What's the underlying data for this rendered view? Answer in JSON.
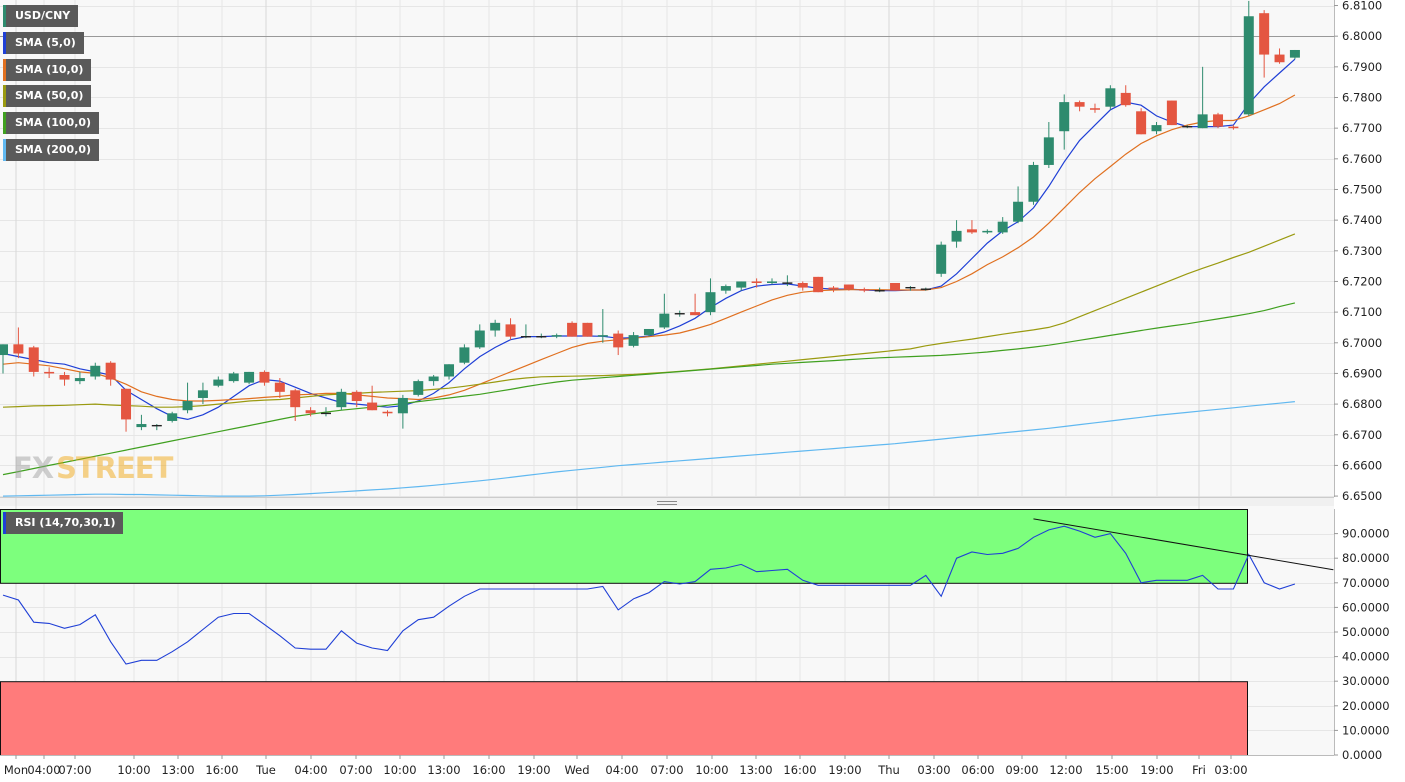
{
  "chart_data": {
    "type": "candlestick",
    "symbol": "USD/CNY",
    "x_tick_labels": [
      "Mon",
      "04:00",
      "07:00",
      "10:00",
      "13:00",
      "16:00",
      "Tue",
      "04:00",
      "07:00",
      "10:00",
      "13:00",
      "16:00",
      "19:00",
      "Wed",
      "04:00",
      "07:00",
      "10:00",
      "13:00",
      "16:00",
      "19:00",
      "Thu",
      "03:00",
      "06:00",
      "09:00",
      "12:00",
      "15:00",
      "19:00",
      "Fri",
      "03:00"
    ],
    "price_axis": {
      "ticks": [
        "6.8100",
        "6.8000",
        "6.7900",
        "6.7800",
        "6.7700",
        "6.7600",
        "6.7500",
        "6.7400",
        "6.7300",
        "6.7200",
        "6.7100",
        "6.7000",
        "6.6900",
        "6.6800",
        "6.6700",
        "6.6600",
        "6.6500"
      ],
      "ylim": [
        6.6497,
        6.8118
      ],
      "horizontal_line": 6.8
    },
    "indicators": [
      {
        "name": "SMA (5,0)",
        "color": "#1f3fd6"
      },
      {
        "name": "SMA (10,0)",
        "color": "#e07020"
      },
      {
        "name": "SMA (50,0)",
        "color": "#9a9a10"
      },
      {
        "name": "SMA (100,0)",
        "color": "#40a020"
      },
      {
        "name": "SMA (200,0)",
        "color": "#60b8f0"
      }
    ],
    "candles": [
      {
        "o": 6.696,
        "h": 6.6995,
        "l": 6.69,
        "c": 6.6995
      },
      {
        "o": 6.6995,
        "h": 6.705,
        "l": 6.695,
        "c": 6.6965
      },
      {
        "o": 6.6985,
        "h": 6.699,
        "l": 6.689,
        "c": 6.6905
      },
      {
        "o": 6.6905,
        "h": 6.692,
        "l": 6.6885,
        "c": 6.69
      },
      {
        "o": 6.6895,
        "h": 6.6905,
        "l": 6.686,
        "c": 6.688
      },
      {
        "o": 6.6875,
        "h": 6.6905,
        "l": 6.6865,
        "c": 6.6885
      },
      {
        "o": 6.689,
        "h": 6.6935,
        "l": 6.688,
        "c": 6.6925
      },
      {
        "o": 6.6935,
        "h": 6.694,
        "l": 6.686,
        "c": 6.688
      },
      {
        "o": 6.685,
        "h": 6.685,
        "l": 6.671,
        "c": 6.675
      },
      {
        "o": 6.6725,
        "h": 6.6765,
        "l": 6.6715,
        "c": 6.6735
      },
      {
        "o": 6.673,
        "h": 6.6735,
        "l": 6.6715,
        "c": 6.673
      },
      {
        "o": 6.6745,
        "h": 6.6775,
        "l": 6.674,
        "c": 6.677
      },
      {
        "o": 6.678,
        "h": 6.687,
        "l": 6.677,
        "c": 6.681
      },
      {
        "o": 6.682,
        "h": 6.687,
        "l": 6.68,
        "c": 6.6845
      },
      {
        "o": 6.686,
        "h": 6.689,
        "l": 6.6855,
        "c": 6.688
      },
      {
        "o": 6.6875,
        "h": 6.6905,
        "l": 6.687,
        "c": 6.69
      },
      {
        "o": 6.687,
        "h": 6.6905,
        "l": 6.6865,
        "c": 6.6905
      },
      {
        "o": 6.6905,
        "h": 6.691,
        "l": 6.686,
        "c": 6.687
      },
      {
        "o": 6.687,
        "h": 6.6885,
        "l": 6.682,
        "c": 6.684
      },
      {
        "o": 6.6845,
        "h": 6.685,
        "l": 6.6745,
        "c": 6.679
      },
      {
        "o": 6.678,
        "h": 6.679,
        "l": 6.676,
        "c": 6.677
      },
      {
        "o": 6.677,
        "h": 6.679,
        "l": 6.676,
        "c": 6.677
      },
      {
        "o": 6.679,
        "h": 6.685,
        "l": 6.678,
        "c": 6.684
      },
      {
        "o": 6.684,
        "h": 6.6845,
        "l": 6.679,
        "c": 6.681
      },
      {
        "o": 6.6805,
        "h": 6.686,
        "l": 6.678,
        "c": 6.678
      },
      {
        "o": 6.6775,
        "h": 6.678,
        "l": 6.676,
        "c": 6.677
      },
      {
        "o": 6.677,
        "h": 6.683,
        "l": 6.672,
        "c": 6.682
      },
      {
        "o": 6.683,
        "h": 6.688,
        "l": 6.6825,
        "c": 6.6875
      },
      {
        "o": 6.6875,
        "h": 6.6895,
        "l": 6.686,
        "c": 6.689
      },
      {
        "o": 6.689,
        "h": 6.693,
        "l": 6.688,
        "c": 6.693
      },
      {
        "o": 6.6935,
        "h": 6.6995,
        "l": 6.693,
        "c": 6.6985
      },
      {
        "o": 6.6985,
        "h": 6.706,
        "l": 6.698,
        "c": 6.704
      },
      {
        "o": 6.704,
        "h": 6.7075,
        "l": 6.702,
        "c": 6.7065
      },
      {
        "o": 6.706,
        "h": 6.708,
        "l": 6.701,
        "c": 6.702
      },
      {
        "o": 6.702,
        "h": 6.706,
        "l": 6.7015,
        "c": 6.702
      },
      {
        "o": 6.702,
        "h": 6.703,
        "l": 6.7015,
        "c": 6.702
      },
      {
        "o": 6.702,
        "h": 6.703,
        "l": 6.7015,
        "c": 6.7025
      },
      {
        "o": 6.7065,
        "h": 6.707,
        "l": 6.702,
        "c": 6.702
      },
      {
        "o": 6.7065,
        "h": 6.7065,
        "l": 6.702,
        "c": 6.702
      },
      {
        "o": 6.702,
        "h": 6.711,
        "l": 6.7,
        "c": 6.7025
      },
      {
        "o": 6.703,
        "h": 6.704,
        "l": 6.696,
        "c": 6.6985
      },
      {
        "o": 6.699,
        "h": 6.7035,
        "l": 6.6985,
        "c": 6.7025
      },
      {
        "o": 6.7025,
        "h": 6.7045,
        "l": 6.702,
        "c": 6.7045
      },
      {
        "o": 6.705,
        "h": 6.716,
        "l": 6.7045,
        "c": 6.7095
      },
      {
        "o": 6.7095,
        "h": 6.7105,
        "l": 6.7085,
        "c": 6.7095
      },
      {
        "o": 6.71,
        "h": 6.716,
        "l": 6.709,
        "c": 6.709
      },
      {
        "o": 6.71,
        "h": 6.721,
        "l": 6.709,
        "c": 6.7165
      },
      {
        "o": 6.717,
        "h": 6.719,
        "l": 6.716,
        "c": 6.7185
      },
      {
        "o": 6.718,
        "h": 6.72,
        "l": 6.717,
        "c": 6.72
      },
      {
        "o": 6.72,
        "h": 6.721,
        "l": 6.718,
        "c": 6.7195
      },
      {
        "o": 6.7195,
        "h": 6.721,
        "l": 6.719,
        "c": 6.72
      },
      {
        "o": 6.7195,
        "h": 6.722,
        "l": 6.7185,
        "c": 6.7195
      },
      {
        "o": 6.7195,
        "h": 6.72,
        "l": 6.717,
        "c": 6.718
      },
      {
        "o": 6.7215,
        "h": 6.7215,
        "l": 6.7165,
        "c": 6.7165
      },
      {
        "o": 6.718,
        "h": 6.7185,
        "l": 6.7165,
        "c": 6.7175
      },
      {
        "o": 6.719,
        "h": 6.719,
        "l": 6.717,
        "c": 6.7175
      },
      {
        "o": 6.7175,
        "h": 6.718,
        "l": 6.7165,
        "c": 6.717
      },
      {
        "o": 6.717,
        "h": 6.718,
        "l": 6.7165,
        "c": 6.717
      },
      {
        "o": 6.7195,
        "h": 6.7195,
        "l": 6.717,
        "c": 6.717
      },
      {
        "o": 6.718,
        "h": 6.7185,
        "l": 6.717,
        "c": 6.718
      },
      {
        "o": 6.7175,
        "h": 6.718,
        "l": 6.717,
        "c": 6.7175
      },
      {
        "o": 6.7225,
        "h": 6.733,
        "l": 6.7215,
        "c": 6.732
      },
      {
        "o": 6.733,
        "h": 6.74,
        "l": 6.731,
        "c": 6.7365
      },
      {
        "o": 6.737,
        "h": 6.74,
        "l": 6.7355,
        "c": 6.736
      },
      {
        "o": 6.736,
        "h": 6.737,
        "l": 6.7355,
        "c": 6.7365
      },
      {
        "o": 6.736,
        "h": 6.741,
        "l": 6.7355,
        "c": 6.7395
      },
      {
        "o": 6.7395,
        "h": 6.751,
        "l": 6.739,
        "c": 6.746
      },
      {
        "o": 6.746,
        "h": 6.759,
        "l": 6.745,
        "c": 6.758
      },
      {
        "o": 6.758,
        "h": 6.772,
        "l": 6.757,
        "c": 6.767
      },
      {
        "o": 6.769,
        "h": 6.781,
        "l": 6.763,
        "c": 6.7785
      },
      {
        "o": 6.7785,
        "h": 6.779,
        "l": 6.7755,
        "c": 6.777
      },
      {
        "o": 6.7765,
        "h": 6.778,
        "l": 6.775,
        "c": 6.776
      },
      {
        "o": 6.777,
        "h": 6.784,
        "l": 6.776,
        "c": 6.783
      },
      {
        "o": 6.7815,
        "h": 6.784,
        "l": 6.777,
        "c": 6.7775
      },
      {
        "o": 6.7755,
        "h": 6.7765,
        "l": 6.768,
        "c": 6.768
      },
      {
        "o": 6.769,
        "h": 6.772,
        "l": 6.768,
        "c": 6.771
      },
      {
        "o": 6.779,
        "h": 6.779,
        "l": 6.771,
        "c": 6.771
      },
      {
        "o": 6.7705,
        "h": 6.771,
        "l": 6.77,
        "c": 6.7705
      },
      {
        "o": 6.77,
        "h": 6.79,
        "l": 6.77,
        "c": 6.7745
      },
      {
        "o": 6.7745,
        "h": 6.775,
        "l": 6.77,
        "c": 6.7705
      },
      {
        "o": 6.7705,
        "h": 6.771,
        "l": 6.7695,
        "c": 6.77
      },
      {
        "o": 6.7745,
        "h": 6.8115,
        "l": 6.774,
        "c": 6.8065
      },
      {
        "o": 6.8075,
        "h": 6.8085,
        "l": 6.7865,
        "c": 6.794
      },
      {
        "o": 6.794,
        "h": 6.796,
        "l": 6.791,
        "c": 6.7915
      },
      {
        "o": 6.793,
        "h": 6.7955,
        "l": 6.7925,
        "c": 6.7955
      }
    ],
    "sma": {
      "SMA (5,0)": [
        6.6965,
        6.6955,
        6.6945,
        6.6935,
        6.693,
        6.6915,
        6.6905,
        6.6895,
        6.6845,
        6.6815,
        6.6785,
        6.676,
        6.675,
        6.6765,
        6.679,
        6.6825,
        6.686,
        6.688,
        6.6875,
        6.6855,
        6.6835,
        6.682,
        6.6805,
        6.68,
        6.6795,
        6.679,
        6.6795,
        6.681,
        6.6835,
        6.687,
        6.6915,
        6.6955,
        6.6985,
        6.701,
        6.702,
        6.702,
        6.7022,
        6.7022,
        6.7022,
        6.7021,
        6.7015,
        6.7017,
        6.7022,
        6.7035,
        6.7055,
        6.708,
        6.7115,
        6.7145,
        6.717,
        6.7185,
        6.719,
        6.7192,
        6.7185,
        6.7178,
        6.7175,
        6.7175,
        6.7172,
        6.717,
        6.717,
        6.7172,
        6.7172,
        6.7185,
        6.7225,
        6.7275,
        6.7325,
        6.7365,
        6.7395,
        6.744,
        6.751,
        6.759,
        6.766,
        6.771,
        6.776,
        6.7785,
        6.7775,
        6.774,
        6.772,
        6.7705,
        6.7705,
        6.7705,
        6.771,
        6.778,
        6.7835,
        6.788,
        6.7925
      ],
      "SMA (10,0)": [
        6.693,
        6.6935,
        6.693,
        6.6925,
        6.6915,
        6.6905,
        6.69,
        6.6885,
        6.6865,
        6.684,
        6.6825,
        6.6815,
        6.681,
        6.681,
        6.6812,
        6.6815,
        6.6818,
        6.6822,
        6.6825,
        6.683,
        6.6832,
        6.6835,
        6.6835,
        6.683,
        6.6825,
        6.682,
        6.6818,
        6.6815,
        6.682,
        6.683,
        6.6845,
        6.6865,
        6.6885,
        6.6905,
        6.6925,
        6.6945,
        6.6965,
        6.6985,
        6.6998,
        6.7005,
        6.701,
        6.7015,
        6.702,
        6.7025,
        6.7032,
        6.7045,
        6.706,
        6.708,
        6.71,
        6.712,
        6.714,
        6.7155,
        6.7165,
        6.717,
        6.7172,
        6.7173,
        6.7173,
        6.7173,
        6.7172,
        6.7172,
        6.7172,
        6.718,
        6.72,
        6.7225,
        6.7255,
        6.728,
        6.731,
        6.7345,
        6.739,
        6.744,
        6.749,
        6.7535,
        6.7575,
        6.7615,
        6.765,
        6.7675,
        6.7695,
        6.771,
        6.772,
        6.7725,
        6.7725,
        6.774,
        6.776,
        6.778,
        6.7808
      ],
      "SMA (50,0)": [
        6.679,
        6.6792,
        6.6794,
        6.6795,
        6.6796,
        6.6798,
        6.68,
        6.6797,
        6.6795,
        6.6793,
        6.679,
        6.679,
        6.6792,
        6.6795,
        6.68,
        6.6805,
        6.681,
        6.6813,
        6.6815,
        6.682,
        6.6825,
        6.683,
        6.6833,
        6.6835,
        6.6838,
        6.684,
        6.6842,
        6.6844,
        6.6848,
        6.6852,
        6.6858,
        6.6865,
        6.6872,
        6.688,
        6.6885,
        6.6889,
        6.689,
        6.6891,
        6.6892,
        6.6893,
        6.6895,
        6.6897,
        6.69,
        6.6903,
        6.6907,
        6.6911,
        6.6915,
        6.692,
        6.6925,
        6.693,
        6.6935,
        6.694,
        6.6945,
        6.695,
        6.6955,
        6.696,
        6.6965,
        6.697,
        6.6975,
        6.698,
        6.699,
        6.6998,
        6.7005,
        6.7012,
        6.702,
        6.7028,
        6.7035,
        6.7042,
        6.705,
        6.7065,
        6.7085,
        6.7105,
        6.7125,
        6.7145,
        6.7165,
        6.7185,
        6.7205,
        6.7225,
        6.7243,
        6.726,
        6.7278,
        6.7295,
        6.7315,
        6.7335,
        6.7355
      ],
      "SMA (100,0)": [
        6.657,
        6.658,
        6.659,
        6.66,
        6.661,
        6.662,
        6.663,
        6.664,
        6.665,
        6.666,
        6.667,
        6.668,
        6.669,
        6.67,
        6.671,
        6.672,
        6.673,
        6.674,
        6.675,
        6.676,
        6.6767,
        6.6774,
        6.678,
        6.6785,
        6.679,
        6.6796,
        6.6802,
        6.6808,
        6.6814,
        6.682,
        6.6826,
        6.6832,
        6.684,
        6.6848,
        6.6857,
        6.6865,
        6.6872,
        6.6878,
        6.6882,
        6.6886,
        6.689,
        6.6894,
        6.6898,
        6.6902,
        6.6906,
        6.691,
        6.6914,
        6.6918,
        6.6922,
        6.6926,
        6.693,
        6.6933,
        6.6936,
        6.6939,
        6.6942,
        6.6945,
        6.6948,
        6.6951,
        6.6953,
        6.6955,
        6.6957,
        6.6959,
        6.6962,
        6.6966,
        6.697,
        6.6975,
        6.698,
        6.6986,
        6.6992,
        6.7,
        6.7008,
        6.7016,
        6.7024,
        6.7032,
        6.704,
        6.7048,
        6.7055,
        6.7062,
        6.707,
        6.7078,
        6.7086,
        6.7095,
        6.7105,
        6.7118,
        6.713
      ],
      "SMA (200,0)": [
        6.65,
        6.6501,
        6.6502,
        6.6503,
        6.6504,
        6.6505,
        6.6506,
        6.6506,
        6.6505,
        6.6505,
        6.6504,
        6.6503,
        6.6502,
        6.6501,
        6.65,
        6.65,
        6.65,
        6.6501,
        6.6503,
        6.6505,
        6.6508,
        6.6511,
        6.6514,
        6.6517,
        6.652,
        6.6523,
        6.6527,
        6.6531,
        6.6535,
        6.654,
        6.6545,
        6.655,
        6.6555,
        6.6561,
        6.6567,
        6.6573,
        6.6579,
        6.6584,
        6.6589,
        6.6594,
        6.6599,
        6.6603,
        6.6607,
        6.6611,
        6.6615,
        6.6619,
        6.6623,
        6.6627,
        6.6631,
        6.6635,
        6.6639,
        6.6643,
        6.6647,
        6.6651,
        6.6655,
        6.6659,
        6.6663,
        6.6667,
        6.6671,
        6.6676,
        6.6681,
        6.6686,
        6.6691,
        6.6696,
        6.6701,
        6.6706,
        6.6711,
        6.6716,
        6.6721,
        6.6727,
        6.6733,
        6.6739,
        6.6745,
        6.6751,
        6.6757,
        6.6763,
        6.6768,
        6.6773,
        6.6778,
        6.6783,
        6.6788,
        6.6793,
        6.6798,
        6.6803,
        6.6808
      ]
    },
    "rsi": {
      "name": "RSI (14,70,30,1)",
      "ticks": [
        "90.0000",
        "80.0000",
        "70.0000",
        "60.0000",
        "50.0000",
        "40.0000",
        "30.0000",
        "20.0000",
        "10.0000",
        "0.0000"
      ],
      "overbought": 70,
      "oversold": 30,
      "values": [
        65,
        63,
        54,
        53.5,
        51.5,
        53,
        57,
        46,
        37,
        38.5,
        38.5,
        42,
        46,
        51,
        56,
        57.5,
        57.5,
        53,
        48.5,
        43.5,
        43,
        43,
        50.5,
        45.5,
        43.5,
        42.5,
        50.5,
        55,
        56,
        60.5,
        64.5,
        67.5,
        67.5,
        67.5,
        67.5,
        67.5,
        67.5,
        67.5,
        67.5,
        68.5,
        59,
        63.5,
        66,
        70.5,
        69.5,
        70.5,
        75.5,
        76,
        77.5,
        74.5,
        75,
        75.5,
        71,
        69,
        69,
        69,
        69,
        69,
        69,
        69,
        73,
        64.5,
        80,
        82.5,
        81.5,
        82,
        84,
        88.5,
        91.5,
        93,
        91,
        88.5,
        90,
        82,
        70,
        71,
        71,
        71,
        73,
        67.5,
        67.5,
        81.5,
        70,
        67.5,
        69.5
      ],
      "trendline": [
        [
          67,
          96
        ],
        [
          91.5,
          70
        ]
      ]
    }
  }
}
